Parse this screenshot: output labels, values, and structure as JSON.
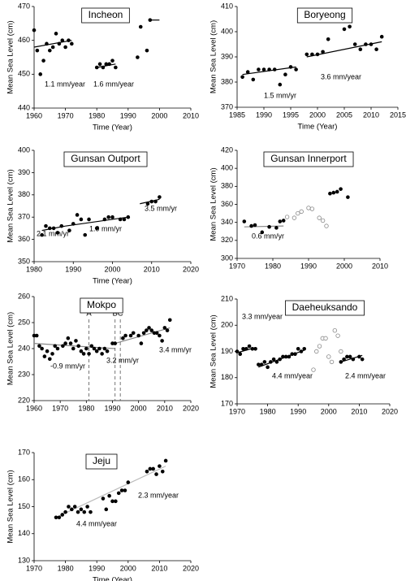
{
  "chart_data": [
    {
      "type": "scatter",
      "title": "Incheon",
      "xlabel": "Time (Year)",
      "ylabel": "Mean Sea Level (cm)",
      "xlim": [
        1960,
        2010
      ],
      "ylim": [
        440,
        470
      ],
      "xticks": [
        1960,
        1970,
        1980,
        1990,
        2000,
        2010
      ],
      "yticks": [
        440,
        450,
        460,
        470
      ],
      "series": [
        {
          "color": "#000000",
          "marker": "filled",
          "x": [
            1960,
            1961,
            1962,
            1963,
            1964,
            1965,
            1966,
            1967,
            1968,
            1969,
            1970,
            1971,
            1972,
            1980,
            1981,
            1982,
            1983,
            1984,
            1985,
            1986,
            1993,
            1994,
            1996,
            1997
          ],
          "values": [
            463,
            457,
            450,
            454,
            459,
            457,
            458,
            462,
            459,
            460,
            458,
            460,
            459,
            452,
            453,
            452,
            453,
            453,
            454,
            452,
            455,
            464,
            457,
            466
          ]
        }
      ],
      "trend_lines": [
        {
          "color": "#000000",
          "x": [
            1960,
            1972
          ],
          "values": [
            458,
            460
          ]
        },
        {
          "color": "#000000",
          "x": [
            1980,
            1986
          ],
          "values": [
            452,
            453
          ]
        },
        {
          "color": "#000000",
          "x": [
            1997,
            2000
          ],
          "values": [
            466,
            466
          ]
        }
      ],
      "annotations": [
        "1.1 mm/year",
        "1.6 mm/year"
      ]
    },
    {
      "type": "scatter",
      "title": "Boryeong",
      "xlabel": "Time (Year)",
      "ylabel": "Mean Sea Level (cm)",
      "xlim": [
        1985,
        2015
      ],
      "ylim": [
        370,
        410
      ],
      "xticks": [
        1985,
        1990,
        1995,
        2000,
        2005,
        2010,
        2015
      ],
      "yticks": [
        370,
        380,
        390,
        400,
        410
      ],
      "series": [
        {
          "color": "#000000",
          "marker": "filled",
          "x": [
            1986,
            1987,
            1988,
            1989,
            1990,
            1991,
            1992,
            1993,
            1994,
            1995,
            1996,
            1998,
            1999,
            2000,
            2001,
            2002,
            2005,
            2006,
            2007,
            2008,
            2009,
            2010,
            2011,
            2012
          ],
          "values": [
            382,
            384,
            381,
            385,
            385,
            385,
            385,
            379,
            383,
            386,
            385,
            391,
            391,
            391,
            392,
            397,
            401,
            402,
            395,
            393,
            395,
            395,
            393,
            398
          ]
        }
      ],
      "trend_lines": [
        {
          "color": "#000000",
          "x": [
            1986,
            1996
          ],
          "values": [
            383,
            386
          ]
        },
        {
          "color": "#000000",
          "x": [
            1998,
            2012
          ],
          "values": [
            390,
            396
          ]
        }
      ],
      "annotations": [
        "1.5 mm/yr",
        "3.6 mm/year"
      ]
    },
    {
      "type": "scatter",
      "title": "Gunsan Outport",
      "xlabel": "Time (Year)",
      "ylabel": "Mean Sea Level (cm)",
      "xlim": [
        1980,
        2020
      ],
      "ylim": [
        350,
        400
      ],
      "xticks": [
        1980,
        1990,
        2000,
        2010,
        2020
      ],
      "yticks": [
        350,
        360,
        370,
        380,
        390,
        400
      ],
      "series": [
        {
          "color": "#000000",
          "marker": "filled",
          "x": [
            1982,
            1983,
            1984,
            1985,
            1986,
            1987,
            1989,
            1990,
            1991,
            1992,
            1993,
            1994,
            1996,
            1998,
            1999,
            2000,
            2002,
            2003,
            2004,
            2009,
            2010,
            2011,
            2012
          ],
          "values": [
            362,
            366,
            365,
            365,
            363,
            366,
            364,
            367,
            371,
            369,
            362,
            369,
            365,
            369,
            370,
            370,
            369,
            369,
            370,
            376,
            377,
            377,
            379
          ]
        }
      ],
      "trend_lines": [
        {
          "color": "#000000",
          "x": [
            1982,
            1988
          ],
          "values": [
            364,
            366
          ]
        },
        {
          "color": "#000000",
          "x": [
            1988,
            2004
          ],
          "values": [
            366,
            370
          ]
        },
        {
          "color": "#000000",
          "x": [
            2007,
            2012
          ],
          "values": [
            376,
            378
          ]
        }
      ],
      "annotations": [
        "2.1 mm/yr",
        "1.9 mm/yr",
        "3.5 mm/yr"
      ]
    },
    {
      "type": "scatter",
      "title": "Gunsan Innerport",
      "ylabel": "Mean Sea Level (cm)",
      "xlim": [
        1970,
        2010
      ],
      "ylim": [
        300,
        420
      ],
      "xticks": [
        1970,
        1980,
        1990,
        2000,
        2010
      ],
      "yticks": [
        300,
        320,
        340,
        360,
        380,
        400,
        420
      ],
      "series": [
        {
          "color": "#000000",
          "marker": "filled",
          "x": [
            1972,
            1974,
            1975,
            1977,
            1979,
            1981,
            1982,
            1983,
            1996,
            1997,
            1998,
            1999,
            2001
          ],
          "values": [
            341,
            336,
            337,
            329,
            335,
            334,
            341,
            342,
            372,
            373,
            374,
            377,
            368
          ]
        },
        {
          "color": "#888888",
          "marker": "open",
          "x": [
            1984,
            1986,
            1987,
            1988,
            1990,
            1991,
            1993,
            1994,
            1995
          ],
          "values": [
            346,
            345,
            350,
            352,
            356,
            355,
            345,
            342,
            336
          ]
        }
      ],
      "trend_lines": [
        {
          "color": "#888888",
          "x": [
            1972,
            1983
          ],
          "values": [
            335,
            336
          ]
        }
      ],
      "annotations": [
        "0.6 mm/yr"
      ]
    },
    {
      "type": "scatter",
      "title": "Mokpo",
      "ylabel": "Mean Sea Level (cm)",
      "xlim": [
        1960,
        2020
      ],
      "ylim": [
        220,
        260
      ],
      "xticks": [
        1960,
        1970,
        1980,
        1990,
        2000,
        2010,
        2020
      ],
      "yticks": [
        220,
        230,
        240,
        250,
        260
      ],
      "series": [
        {
          "color": "#000000",
          "marker": "filled",
          "x": [
            1960,
            1961,
            1962,
            1963,
            1964,
            1965,
            1966,
            1967,
            1968,
            1969,
            1971,
            1972,
            1973,
            1974,
            1975,
            1976,
            1977,
            1978,
            1979,
            1980,
            1981,
            1982,
            1983,
            1984,
            1985,
            1986,
            1987,
            1988,
            1990,
            1991,
            1994,
            1995,
            1997,
            1998,
            2000,
            2001,
            2002,
            2003,
            2004,
            2005,
            2006,
            2007,
            2008,
            2009,
            2010,
            2011,
            2012
          ],
          "values": [
            245,
            245,
            241,
            240,
            237,
            239,
            236,
            238,
            241,
            240,
            241,
            242,
            244,
            242,
            240,
            243,
            241,
            239,
            238,
            240,
            238,
            241,
            240,
            239,
            240,
            238,
            240,
            239,
            242,
            242,
            244,
            245,
            245,
            246,
            245,
            242,
            246,
            247,
            248,
            247,
            246,
            246,
            245,
            243,
            248,
            247,
            251
          ]
        }
      ],
      "trend_lines": [
        {
          "color": "#888888",
          "x": [
            1960,
            1991
          ],
          "values": [
            242,
            240
          ]
        },
        {
          "color": "#888888",
          "x": [
            1991,
            2012
          ],
          "values": [
            242,
            248
          ]
        }
      ],
      "markers": [
        {
          "label": "A",
          "x": 1981
        },
        {
          "label": "B",
          "x": 1991
        },
        {
          "label": "C",
          "x": 1993
        }
      ],
      "annotations": [
        "-0.9 mm/yr",
        "3.2 mm/yr",
        "3.4 mm/yr"
      ]
    },
    {
      "type": "scatter",
      "title": "Daeheuksando",
      "ylabel": "Mean Sea Level (cm)",
      "xlim": [
        1970,
        2020
      ],
      "ylim": [
        170,
        210
      ],
      "xticks": [
        1970,
        1980,
        1990,
        2000,
        2010,
        2020
      ],
      "yticks": [
        170,
        180,
        190,
        200,
        210
      ],
      "series": [
        {
          "color": "#000000",
          "marker": "filled",
          "x": [
            1970,
            1971,
            1972,
            1973,
            1974,
            1975,
            1976,
            1977,
            1978,
            1979,
            1980,
            1981,
            1982,
            1983,
            1984,
            1985,
            1986,
            1987,
            1988,
            1989,
            1990,
            1991,
            1992,
            2004,
            2005,
            2006,
            2007,
            2008,
            2010,
            2011
          ],
          "values": [
            190,
            189,
            191,
            191,
            192,
            191,
            191,
            185,
            185,
            186,
            184,
            186,
            187,
            186,
            187,
            188,
            188,
            188,
            189,
            189,
            191,
            190,
            191,
            186,
            187,
            188,
            188,
            187,
            188,
            187
          ]
        },
        {
          "color": "#888888",
          "marker": "open",
          "x": [
            1995,
            1996,
            1997,
            1998,
            1999,
            2000,
            2001,
            2002,
            2003,
            2004
          ],
          "values": [
            183,
            190,
            192,
            195,
            195,
            188,
            186,
            198,
            196,
            190
          ]
        }
      ],
      "trend_lines": [
        {
          "color": "#000000",
          "x": [
            1970,
            1976
          ],
          "values": [
            189.5,
            191.5
          ]
        },
        {
          "color": "#000000",
          "x": [
            1977,
            1992
          ],
          "values": [
            184,
            190.5
          ]
        },
        {
          "color": "#000000",
          "x": [
            2004,
            2011
          ],
          "values": [
            186,
            188.5
          ]
        }
      ],
      "annotations": [
        "3.3 mm/year",
        "4.4 mm/year",
        "2.4 mm/year"
      ]
    },
    {
      "type": "scatter",
      "title": "Jeju",
      "xlabel": "Time (Year)",
      "ylabel": "Mean Sea Level (cm)",
      "xlim": [
        1970,
        2020
      ],
      "ylim": [
        130,
        170
      ],
      "xticks": [
        1970,
        1980,
        1990,
        2000,
        2010,
        2020
      ],
      "yticks": [
        130,
        140,
        150,
        160,
        170
      ],
      "series": [
        {
          "color": "#000000",
          "marker": "filled",
          "x": [
            1977,
            1978,
            1979,
            1980,
            1981,
            1982,
            1983,
            1984,
            1985,
            1986,
            1987,
            1988,
            1992,
            1993,
            1994,
            1995,
            1996,
            1997,
            1998,
            1999,
            2000,
            2006,
            2007,
            2008,
            2009,
            2010,
            2011,
            2012
          ],
          "values": [
            146,
            146,
            147,
            148,
            150,
            149,
            150,
            148,
            149,
            148,
            150,
            148,
            153,
            149,
            154,
            152,
            152,
            155,
            156,
            156,
            159,
            163,
            164,
            164,
            162,
            165,
            163,
            167
          ]
        }
      ],
      "trend_lines": [
        {
          "color": "#bbbbbb",
          "x": [
            1977,
            2012
          ],
          "values": [
            146,
            165
          ]
        }
      ],
      "annotations": [
        "4.4 mm/year",
        "2.3 mm/year"
      ]
    }
  ]
}
